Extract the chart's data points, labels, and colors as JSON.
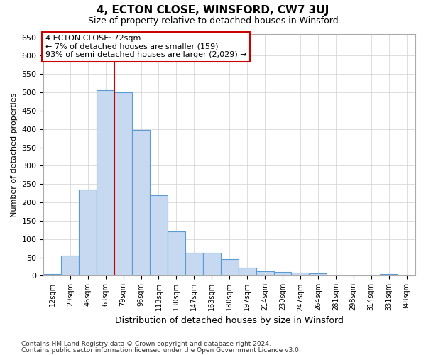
{
  "title": "4, ECTON CLOSE, WINSFORD, CW7 3UJ",
  "subtitle": "Size of property relative to detached houses in Winsford",
  "xlabel": "Distribution of detached houses by size in Winsford",
  "ylabel": "Number of detached properties",
  "categories": [
    "12sqm",
    "29sqm",
    "46sqm",
    "63sqm",
    "79sqm",
    "96sqm",
    "113sqm",
    "130sqm",
    "147sqm",
    "163sqm",
    "180sqm",
    "197sqm",
    "214sqm",
    "230sqm",
    "247sqm",
    "264sqm",
    "281sqm",
    "298sqm",
    "314sqm",
    "331sqm",
    "348sqm"
  ],
  "bar_heights": [
    5,
    55,
    235,
    507,
    500,
    397,
    220,
    120,
    62,
    62,
    46,
    22,
    12,
    10,
    8,
    6,
    0,
    0,
    0,
    5,
    0
  ],
  "bar_color": "#c6d9f0",
  "bar_edge_color": "#5b9bd5",
  "vline_x_index": 3,
  "vline_color": "#cc0000",
  "annotation_text": "4 ECTON CLOSE: 72sqm\n← 7% of detached houses are smaller (159)\n93% of semi-detached houses are larger (2,029) →",
  "annotation_box_color": "#ffffff",
  "annotation_box_edge": "#cc0000",
  "ylim": [
    0,
    660
  ],
  "yticks": [
    0,
    50,
    100,
    150,
    200,
    250,
    300,
    350,
    400,
    450,
    500,
    550,
    600,
    650
  ],
  "footnote1": "Contains HM Land Registry data © Crown copyright and database right 2024.",
  "footnote2": "Contains public sector information licensed under the Open Government Licence v3.0.",
  "bg_color": "#ffffff",
  "grid_color": "#d0d0d0"
}
